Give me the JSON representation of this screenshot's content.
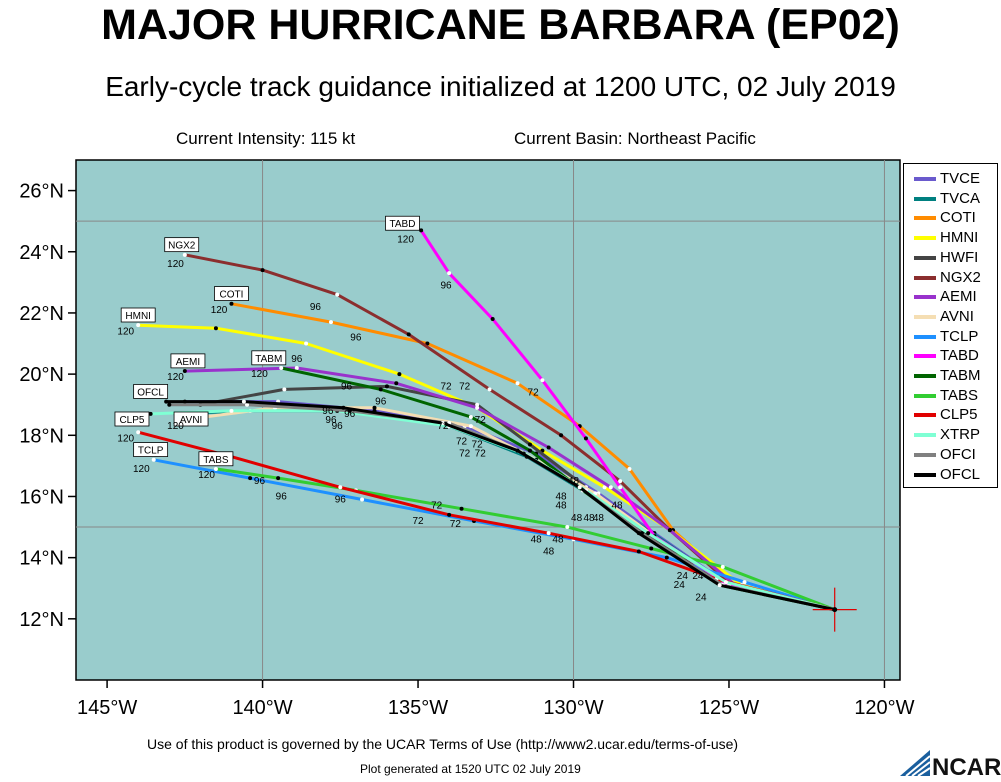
{
  "header": {
    "title": "MAJOR HURRICANE BARBARA (EP02)",
    "subtitle": "Early-cycle track guidance initialized at 1200 UTC, 02 July 2019",
    "intensity": "Current Intensity: 115 kt",
    "basin": "Current Basin: Northeast Pacific"
  },
  "colors": {
    "ocean": "#99cccc",
    "grid": "#888888",
    "frame": "#000000"
  },
  "axes": {
    "lon_range": [
      -146,
      -119.5
    ],
    "lat_range": [
      10,
      27
    ],
    "x_ticks": [
      {
        "value": -145,
        "label": "145°W"
      },
      {
        "value": -140,
        "label": "140°W"
      },
      {
        "value": -135,
        "label": "135°W"
      },
      {
        "value": -130,
        "label": "130°W"
      },
      {
        "value": -125,
        "label": "125°W"
      },
      {
        "value": -120,
        "label": "120°W"
      }
    ],
    "y_ticks": [
      {
        "value": 12,
        "label": "12°N"
      },
      {
        "value": 14,
        "label": "14°N"
      },
      {
        "value": 16,
        "label": "16°N"
      },
      {
        "value": 18,
        "label": "18°N"
      },
      {
        "value": 20,
        "label": "20°N"
      },
      {
        "value": 22,
        "label": "22°N"
      },
      {
        "value": 24,
        "label": "24°N"
      },
      {
        "value": 26,
        "label": "26°N"
      }
    ],
    "grid_lons": [
      -140,
      -130,
      -120
    ],
    "grid_lats": [
      15,
      25
    ]
  },
  "chart_data": {
    "type": "line",
    "storm_position": {
      "lon": -121.6,
      "lat": 12.3
    },
    "series": [
      {
        "name": "TVCE",
        "color": "#6a5acd",
        "width": 3,
        "points": [
          [
            -121.6,
            12.3
          ],
          [
            -125.0,
            13.1
          ],
          [
            -127.4,
            14.8
          ],
          [
            -129.2,
            16.1
          ],
          [
            -131.2,
            17.4
          ],
          [
            -133.5,
            18.3
          ],
          [
            -136.4,
            18.8
          ],
          [
            -139.5,
            19.1
          ],
          [
            -142.5,
            19.1
          ]
        ]
      },
      {
        "name": "TVCA",
        "color": "#008080",
        "width": 3,
        "points": [
          [
            -121.6,
            12.3
          ],
          [
            -125.2,
            13.2
          ],
          [
            -127.6,
            14.9
          ],
          [
            -129.7,
            16.2
          ],
          [
            -131.5,
            17.3
          ],
          [
            -134.0,
            18.3
          ],
          [
            -137.2,
            18.8
          ],
          [
            -140.4,
            18.8
          ],
          [
            -142.8,
            18.7
          ]
        ]
      },
      {
        "name": "COTI",
        "color": "#ff8c00",
        "width": 3,
        "points": [
          [
            -121.6,
            12.3
          ],
          [
            -124.8,
            13.1
          ],
          [
            -126.8,
            14.9
          ],
          [
            -128.2,
            16.9
          ],
          [
            -129.8,
            18.3
          ],
          [
            -131.8,
            19.7
          ],
          [
            -134.7,
            21.0
          ],
          [
            -137.8,
            21.7
          ],
          [
            -141.0,
            22.3
          ]
        ]
      },
      {
        "name": "HMNI",
        "color": "#ffff00",
        "width": 3,
        "points": [
          [
            -121.6,
            12.3
          ],
          [
            -124.6,
            13.1
          ],
          [
            -126.9,
            14.9
          ],
          [
            -129.0,
            16.3
          ],
          [
            -131.0,
            17.5
          ],
          [
            -133.1,
            18.9
          ],
          [
            -135.6,
            20.0
          ],
          [
            -138.6,
            21.0
          ],
          [
            -141.5,
            21.5
          ],
          [
            -144.0,
            21.6
          ]
        ]
      },
      {
        "name": "HWFI",
        "color": "#444444",
        "width": 3,
        "points": [
          [
            -121.6,
            12.3
          ],
          [
            -125.2,
            13.1
          ],
          [
            -127.7,
            14.8
          ],
          [
            -129.6,
            16.3
          ],
          [
            -131.4,
            17.7
          ],
          [
            -133.1,
            19.0
          ],
          [
            -136.0,
            19.6
          ],
          [
            -139.3,
            19.5
          ],
          [
            -142.0,
            19.0
          ]
        ]
      },
      {
        "name": "NGX2",
        "color": "#8b2e2e",
        "width": 3,
        "points": [
          [
            -121.6,
            12.3
          ],
          [
            -124.9,
            13.1
          ],
          [
            -126.9,
            14.9
          ],
          [
            -128.5,
            16.5
          ],
          [
            -130.4,
            18.0
          ],
          [
            -132.7,
            19.5
          ],
          [
            -135.3,
            21.3
          ],
          [
            -137.6,
            22.6
          ],
          [
            -140.0,
            23.4
          ],
          [
            -142.5,
            23.9
          ]
        ]
      },
      {
        "name": "AEMI",
        "color": "#9932cc",
        "width": 3,
        "points": [
          [
            -121.6,
            12.3
          ],
          [
            -124.8,
            13.1
          ],
          [
            -126.9,
            14.9
          ],
          [
            -128.8,
            16.3
          ],
          [
            -130.8,
            17.6
          ],
          [
            -133.1,
            18.9
          ],
          [
            -135.7,
            19.7
          ],
          [
            -138.9,
            20.2
          ],
          [
            -142.5,
            20.1
          ]
        ]
      },
      {
        "name": "AVNI",
        "color": "#f5deb3",
        "width": 3,
        "points": [
          [
            -121.6,
            12.3
          ],
          [
            -125.0,
            13.1
          ],
          [
            -127.4,
            14.7
          ],
          [
            -129.3,
            16.1
          ],
          [
            -131.2,
            17.2
          ],
          [
            -133.3,
            18.3
          ],
          [
            -136.4,
            18.9
          ],
          [
            -139.6,
            18.9
          ],
          [
            -142.6,
            18.5
          ]
        ]
      },
      {
        "name": "TCLP",
        "color": "#1e90ff",
        "width": 3,
        "points": [
          [
            -121.6,
            12.3
          ],
          [
            -124.5,
            13.2
          ],
          [
            -127.0,
            14.0
          ],
          [
            -130.0,
            14.6
          ],
          [
            -133.2,
            15.2
          ],
          [
            -136.8,
            15.9
          ],
          [
            -140.4,
            16.6
          ],
          [
            -143.5,
            17.2
          ]
        ]
      },
      {
        "name": "TABD",
        "color": "#ff00ff",
        "width": 3,
        "points": [
          [
            -121.6,
            12.3
          ],
          [
            -125.0,
            13.1
          ],
          [
            -127.4,
            14.7
          ],
          [
            -128.5,
            16.3
          ],
          [
            -129.6,
            17.9
          ],
          [
            -131.0,
            19.8
          ],
          [
            -132.6,
            21.8
          ],
          [
            -134.0,
            23.3
          ],
          [
            -134.9,
            24.7
          ]
        ]
      },
      {
        "name": "TABM",
        "color": "#006400",
        "width": 3,
        "points": [
          [
            -121.6,
            12.3
          ],
          [
            -125.3,
            13.1
          ],
          [
            -127.8,
            14.8
          ],
          [
            -129.7,
            16.2
          ],
          [
            -131.4,
            17.5
          ],
          [
            -133.3,
            18.6
          ],
          [
            -136.2,
            19.5
          ],
          [
            -139.4,
            20.2
          ]
        ]
      },
      {
        "name": "TABS",
        "color": "#32cd32",
        "width": 3,
        "points": [
          [
            -121.6,
            12.3
          ],
          [
            -125.2,
            13.7
          ],
          [
            -127.5,
            14.3
          ],
          [
            -130.2,
            15.0
          ],
          [
            -133.6,
            15.6
          ],
          [
            -137.0,
            16.2
          ],
          [
            -139.5,
            16.6
          ],
          [
            -141.5,
            16.9
          ]
        ]
      },
      {
        "name": "CLP5",
        "color": "#e00000",
        "width": 3,
        "points": [
          [
            -121.6,
            12.3
          ],
          [
            -125.4,
            13.3
          ],
          [
            -127.9,
            14.2
          ],
          [
            -130.8,
            14.8
          ],
          [
            -134.0,
            15.4
          ],
          [
            -137.5,
            16.3
          ],
          [
            -141.0,
            17.3
          ],
          [
            -144.0,
            18.1
          ]
        ]
      },
      {
        "name": "XTRP",
        "color": "#7fffd4",
        "width": 3,
        "points": [
          [
            -121.6,
            12.3
          ],
          [
            -125.1,
            13.2
          ],
          [
            -127.6,
            14.8
          ],
          [
            -129.6,
            16.2
          ],
          [
            -131.6,
            17.4
          ],
          [
            -134.0,
            18.3
          ],
          [
            -137.6,
            18.8
          ],
          [
            -141.0,
            18.8
          ],
          [
            -143.6,
            18.7
          ]
        ]
      },
      {
        "name": "OFCI",
        "color": "#808080",
        "width": 3,
        "points": [
          [
            -121.6,
            12.3
          ],
          [
            -125.2,
            13.1
          ],
          [
            -127.8,
            14.8
          ],
          [
            -129.8,
            16.3
          ],
          [
            -131.8,
            17.5
          ],
          [
            -134.0,
            18.4
          ],
          [
            -137.2,
            18.8
          ],
          [
            -140.5,
            19.0
          ],
          [
            -143.0,
            19.0
          ]
        ]
      },
      {
        "name": "OFCL",
        "color": "#000000",
        "width": 3,
        "points": [
          [
            -121.6,
            12.3
          ],
          [
            -125.3,
            13.1
          ],
          [
            -127.9,
            14.8
          ],
          [
            -129.8,
            16.3
          ],
          [
            -131.8,
            17.5
          ],
          [
            -134.2,
            18.4
          ],
          [
            -137.4,
            18.9
          ],
          [
            -140.6,
            19.1
          ],
          [
            -143.1,
            19.1
          ]
        ]
      }
    ],
    "track_labels": [
      {
        "text": "TABD",
        "lon": -135.5,
        "lat": 24.9,
        "boxed": true
      },
      {
        "text": "NGX2",
        "lon": -142.6,
        "lat": 24.2,
        "boxed": true
      },
      {
        "text": "COTI",
        "lon": -141.0,
        "lat": 22.6,
        "boxed": true
      },
      {
        "text": "HMNI",
        "lon": -144.0,
        "lat": 21.9,
        "boxed": true
      },
      {
        "text": "AEMI",
        "lon": -142.4,
        "lat": 20.4,
        "boxed": true
      },
      {
        "text": "TABM",
        "lon": -139.8,
        "lat": 20.5,
        "boxed": true
      },
      {
        "text": "OFCL",
        "lon": -143.6,
        "lat": 19.4,
        "boxed": true
      },
      {
        "text": "AVNI",
        "lon": -142.3,
        "lat": 18.5,
        "boxed": true
      },
      {
        "text": "CLP5",
        "lon": -144.2,
        "lat": 18.5,
        "boxed": true
      },
      {
        "text": "TCLP",
        "lon": -143.6,
        "lat": 17.5,
        "boxed": true
      },
      {
        "text": "TABS",
        "lon": -141.5,
        "lat": 17.2,
        "boxed": true
      }
    ],
    "hour_labels": [
      {
        "text": "120",
        "lon": -135.4,
        "lat": 24.3
      },
      {
        "text": "120",
        "lon": -142.8,
        "lat": 23.5
      },
      {
        "text": "120",
        "lon": -141.4,
        "lat": 22.0
      },
      {
        "text": "120",
        "lon": -144.4,
        "lat": 21.3
      },
      {
        "text": "120",
        "lon": -142.8,
        "lat": 19.8
      },
      {
        "text": "120",
        "lon": -140.1,
        "lat": 19.9
      },
      {
        "text": "120",
        "lon": -142.8,
        "lat": 18.2
      },
      {
        "text": "120",
        "lon": -144.4,
        "lat": 17.8
      },
      {
        "text": "120",
        "lon": -143.9,
        "lat": 16.8
      },
      {
        "text": "120",
        "lon": -141.8,
        "lat": 16.6
      },
      {
        "text": "96",
        "lon": -134.1,
        "lat": 22.8
      },
      {
        "text": "96",
        "lon": -138.3,
        "lat": 22.1
      },
      {
        "text": "96",
        "lon": -137.0,
        "lat": 21.1
      },
      {
        "text": "96",
        "lon": -138.9,
        "lat": 20.4
      },
      {
        "text": "96",
        "lon": -137.3,
        "lat": 19.5
      },
      {
        "text": "96",
        "lon": -136.2,
        "lat": 19.0
      },
      {
        "text": "96",
        "lon": -137.9,
        "lat": 18.7
      },
      {
        "text": "96",
        "lon": -137.2,
        "lat": 18.6
      },
      {
        "text": "96",
        "lon": -137.8,
        "lat": 18.4
      },
      {
        "text": "96",
        "lon": -137.6,
        "lat": 18.2
      },
      {
        "text": "96",
        "lon": -140.1,
        "lat": 16.4
      },
      {
        "text": "96",
        "lon": -139.4,
        "lat": 15.9
      },
      {
        "text": "96",
        "lon": -137.5,
        "lat": 15.8
      },
      {
        "text": "72",
        "lon": -131.3,
        "lat": 19.3
      },
      {
        "text": "72",
        "lon": -134.1,
        "lat": 19.5
      },
      {
        "text": "72",
        "lon": -133.5,
        "lat": 19.5
      },
      {
        "text": "72",
        "lon": -134.2,
        "lat": 18.2
      },
      {
        "text": "72",
        "lon": -133.0,
        "lat": 18.4
      },
      {
        "text": "72",
        "lon": -133.6,
        "lat": 17.7
      },
      {
        "text": "72",
        "lon": -133.1,
        "lat": 17.6
      },
      {
        "text": "72",
        "lon": -133.5,
        "lat": 17.3
      },
      {
        "text": "72",
        "lon": -133.0,
        "lat": 17.3
      },
      {
        "text": "72",
        "lon": -134.4,
        "lat": 15.6
      },
      {
        "text": "72",
        "lon": -135.0,
        "lat": 15.1
      },
      {
        "text": "72",
        "lon": -133.8,
        "lat": 15.0
      },
      {
        "text": "48",
        "lon": -130.0,
        "lat": 16.4
      },
      {
        "text": "48",
        "lon": -130.4,
        "lat": 15.9
      },
      {
        "text": "48",
        "lon": -130.4,
        "lat": 15.6
      },
      {
        "text": "48",
        "lon": -128.6,
        "lat": 15.6
      },
      {
        "text": "48",
        "lon": -129.9,
        "lat": 15.2
      },
      {
        "text": "48",
        "lon": -129.5,
        "lat": 15.2
      },
      {
        "text": "48",
        "lon": -129.2,
        "lat": 15.2
      },
      {
        "text": "48",
        "lon": -131.2,
        "lat": 14.5
      },
      {
        "text": "48",
        "lon": -130.5,
        "lat": 14.5
      },
      {
        "text": "48",
        "lon": -130.8,
        "lat": 14.1
      },
      {
        "text": "24",
        "lon": -126.5,
        "lat": 13.3
      },
      {
        "text": "24",
        "lon": -126.0,
        "lat": 13.3
      },
      {
        "text": "24",
        "lon": -126.6,
        "lat": 13.0
      },
      {
        "text": "24",
        "lon": -125.9,
        "lat": 12.6
      }
    ]
  },
  "legend": {
    "items": [
      {
        "label": "TVCE",
        "color": "#6a5acd"
      },
      {
        "label": "TVCA",
        "color": "#008080"
      },
      {
        "label": "COTI",
        "color": "#ff8c00"
      },
      {
        "label": "HMNI",
        "color": "#ffff00"
      },
      {
        "label": "HWFI",
        "color": "#444444"
      },
      {
        "label": "NGX2",
        "color": "#8b2e2e"
      },
      {
        "label": "AEMI",
        "color": "#9932cc"
      },
      {
        "label": "AVNI",
        "color": "#f5deb3"
      },
      {
        "label": "TCLP",
        "color": "#1e90ff"
      },
      {
        "label": "TABD",
        "color": "#ff00ff"
      },
      {
        "label": "TABM",
        "color": "#006400"
      },
      {
        "label": "TABS",
        "color": "#32cd32"
      },
      {
        "label": "CLP5",
        "color": "#e00000"
      },
      {
        "label": "XTRP",
        "color": "#7fffd4"
      },
      {
        "label": "OFCI",
        "color": "#808080"
      },
      {
        "label": "OFCL",
        "color": "#000000"
      }
    ]
  },
  "footer": {
    "terms": "Use of this product is governed by the UCAR Terms of Use (http://www2.ucar.edu/terms-of-use)",
    "generated": "Plot generated at 1520 UTC   02 July 2019",
    "logo": "NCAR"
  }
}
